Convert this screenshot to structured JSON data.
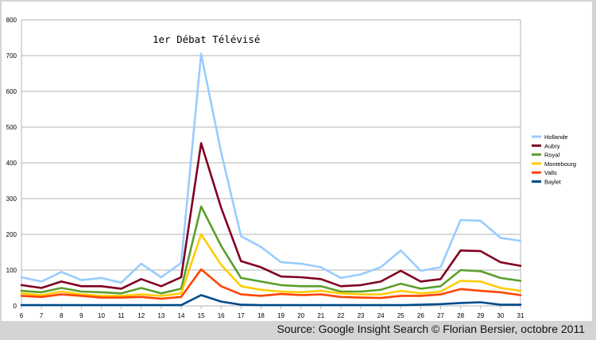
{
  "source": "Source: Google Insight Search © Florian Bersier, octobre 2011",
  "chart_data": {
    "type": "line",
    "annotation": "1er Débat Télévisé",
    "x": [
      6,
      7,
      8,
      9,
      10,
      11,
      12,
      13,
      14,
      15,
      16,
      17,
      18,
      19,
      20,
      21,
      22,
      23,
      24,
      25,
      26,
      27,
      28,
      29,
      30,
      31
    ],
    "ylim": [
      0,
      800
    ],
    "yticks": [
      0,
      100,
      200,
      300,
      400,
      500,
      600,
      700,
      800
    ],
    "grid": true,
    "legend_position": "right",
    "series": [
      {
        "name": "Hollande",
        "color": "#99ccff",
        "values": [
          80,
          68,
          95,
          72,
          78,
          65,
          118,
          80,
          120,
          705,
          430,
          195,
          165,
          122,
          118,
          108,
          78,
          88,
          108,
          155,
          98,
          108,
          240,
          238,
          190,
          182
        ]
      },
      {
        "name": "Aubry",
        "color": "#800020",
        "values": [
          58,
          50,
          68,
          55,
          55,
          48,
          75,
          55,
          80,
          455,
          275,
          125,
          108,
          82,
          80,
          75,
          55,
          58,
          68,
          98,
          68,
          75,
          155,
          153,
          122,
          112
        ]
      },
      {
        "name": "Royal",
        "color": "#5c9e2e",
        "values": [
          42,
          38,
          50,
          40,
          38,
          35,
          50,
          35,
          48,
          278,
          168,
          78,
          68,
          58,
          55,
          55,
          40,
          40,
          45,
          62,
          48,
          55,
          100,
          97,
          78,
          70
        ]
      },
      {
        "name": "Montebourg",
        "color": "#ffcc00",
        "values": [
          35,
          30,
          40,
          32,
          28,
          28,
          32,
          28,
          35,
          200,
          115,
          55,
          45,
          40,
          38,
          42,
          35,
          32,
          32,
          42,
          35,
          40,
          70,
          68,
          50,
          42
        ]
      },
      {
        "name": "Valls",
        "color": "#ff4400",
        "values": [
          28,
          25,
          32,
          28,
          23,
          23,
          25,
          20,
          25,
          102,
          55,
          32,
          28,
          33,
          30,
          32,
          25,
          23,
          22,
          28,
          28,
          32,
          47,
          42,
          38,
          30
        ]
      },
      {
        "name": "Baylet",
        "color": "#004a8c",
        "values": [
          2,
          2,
          2,
          2,
          2,
          2,
          2,
          2,
          2,
          30,
          12,
          3,
          2,
          2,
          2,
          2,
          2,
          2,
          2,
          2,
          3,
          5,
          8,
          10,
          3,
          3
        ]
      }
    ]
  }
}
